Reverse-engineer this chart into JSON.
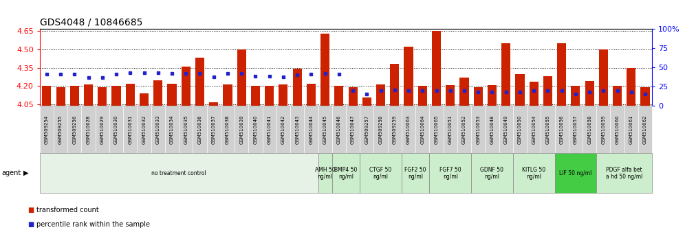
{
  "title": "GDS4048 / 10846685",
  "samples": [
    "GSM509254",
    "GSM509255",
    "GSM509256",
    "GSM510028",
    "GSM510029",
    "GSM510030",
    "GSM510031",
    "GSM510032",
    "GSM510033",
    "GSM510034",
    "GSM510035",
    "GSM510036",
    "GSM510037",
    "GSM510038",
    "GSM510039",
    "GSM510040",
    "GSM510041",
    "GSM510042",
    "GSM510043",
    "GSM510044",
    "GSM510045",
    "GSM510046",
    "GSM510047",
    "GSM509257",
    "GSM509258",
    "GSM509259",
    "GSM510063",
    "GSM510064",
    "GSM510065",
    "GSM510051",
    "GSM510052",
    "GSM510053",
    "GSM510048",
    "GSM510049",
    "GSM510050",
    "GSM510054",
    "GSM510055",
    "GSM510056",
    "GSM510057",
    "GSM510058",
    "GSM510059",
    "GSM510060",
    "GSM510061",
    "GSM510062"
  ],
  "transformed_count": [
    4.2,
    4.19,
    4.205,
    4.215,
    4.19,
    4.2,
    4.22,
    4.14,
    4.245,
    4.22,
    4.36,
    4.43,
    4.07,
    4.215,
    4.5,
    4.2,
    4.2,
    4.215,
    4.34,
    4.22,
    4.63,
    4.2,
    4.19,
    4.11,
    4.215,
    4.38,
    4.52,
    4.2,
    4.65,
    4.21,
    4.27,
    4.19,
    4.21,
    4.55,
    4.3,
    4.235,
    4.28,
    4.55,
    4.2,
    4.24,
    4.5,
    4.205,
    4.35,
    4.19
  ],
  "percentile_rank": [
    41,
    41,
    41,
    37,
    37,
    41,
    43,
    43,
    43,
    42,
    42,
    42,
    38,
    42,
    42,
    39,
    39,
    38,
    40,
    41,
    42,
    41,
    20,
    15,
    20,
    21,
    20,
    20,
    20,
    20,
    20,
    18,
    18,
    18,
    18,
    20,
    20,
    20,
    15,
    18,
    20,
    20,
    18,
    15
  ],
  "y_min": 4.04,
  "y_max": 4.665,
  "y_ticks_left": [
    4.05,
    4.2,
    4.35,
    4.5,
    4.65
  ],
  "y_ticks_right": [
    0,
    25,
    50,
    75,
    100
  ],
  "bar_color": "#cc2200",
  "percentile_color": "#2222cc",
  "agent_groups": [
    {
      "label": "no treatment control",
      "start": 0,
      "end": 19,
      "color": "#e6f2e6"
    },
    {
      "label": "AMH 50\nng/ml",
      "start": 20,
      "end": 20,
      "color": "#cceecc"
    },
    {
      "label": "BMP4 50\nng/ml",
      "start": 21,
      "end": 22,
      "color": "#cceecc"
    },
    {
      "label": "CTGF 50\nng/ml",
      "start": 23,
      "end": 25,
      "color": "#cceecc"
    },
    {
      "label": "FGF2 50\nng/ml",
      "start": 26,
      "end": 27,
      "color": "#cceecc"
    },
    {
      "label": "FGF7 50\nng/ml",
      "start": 28,
      "end": 30,
      "color": "#cceecc"
    },
    {
      "label": "GDNF 50\nng/ml",
      "start": 31,
      "end": 33,
      "color": "#cceecc"
    },
    {
      "label": "KITLG 50\nng/ml",
      "start": 34,
      "end": 36,
      "color": "#cceecc"
    },
    {
      "label": "LIF 50 ng/ml",
      "start": 37,
      "end": 39,
      "color": "#44cc44"
    },
    {
      "label": "PDGF alfa bet\na hd 50 ng/ml",
      "start": 40,
      "end": 43,
      "color": "#cceecc"
    }
  ],
  "legend_items": [
    {
      "label": "transformed count",
      "color": "#cc2200"
    },
    {
      "label": "percentile rank within the sample",
      "color": "#2222cc"
    }
  ]
}
